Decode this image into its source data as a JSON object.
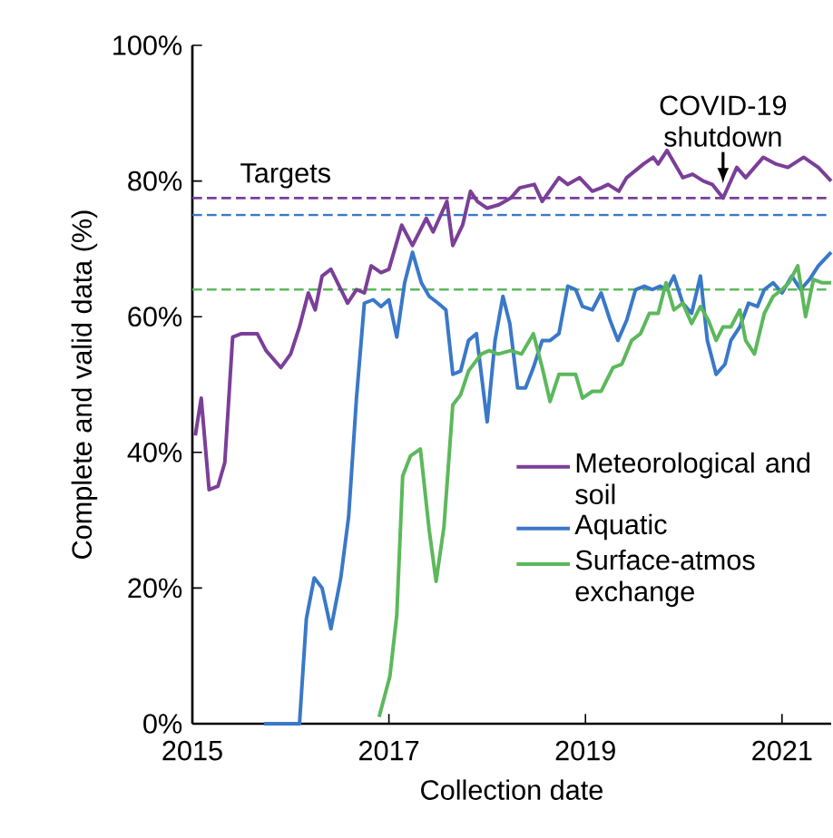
{
  "chart_data": {
    "type": "line",
    "xlabel": "Collection date",
    "ylabel": "Complete and valid data (%)",
    "xlim": [
      2015,
      2021.5
    ],
    "xticks": [
      2015,
      2017,
      2019,
      2021
    ],
    "ylim": [
      0,
      100
    ],
    "yticks": [
      {
        "value": 0,
        "label": "0%"
      },
      {
        "value": 20,
        "label": "20%"
      },
      {
        "value": 40,
        "label": "40%"
      },
      {
        "value": 60,
        "label": "60%"
      },
      {
        "value": 80,
        "label": "80%"
      },
      {
        "value": 100,
        "label": "100%"
      }
    ],
    "legend": "bottom right",
    "series": [
      {
        "name": "Meteorological and soil",
        "color": "#7b3f98",
        "x": [
          2015.03,
          2015.09,
          2015.17,
          2015.26,
          2015.33,
          2015.41,
          2015.5,
          2015.66,
          2015.75,
          2015.9,
          2016.0,
          2016.09,
          2016.18,
          2016.25,
          2016.32,
          2016.41,
          2016.58,
          2016.67,
          2016.75,
          2016.82,
          2016.92,
          2017.0,
          2017.13,
          2017.24,
          2017.38,
          2017.45,
          2017.59,
          2017.65,
          2017.75,
          2017.83,
          2017.9,
          2018.0,
          2018.12,
          2018.24,
          2018.33,
          2018.48,
          2018.56,
          2018.73,
          2018.82,
          2018.94,
          2019.07,
          2019.16,
          2019.23,
          2019.34,
          2019.42,
          2019.59,
          2019.69,
          2019.74,
          2019.83,
          2019.99,
          2020.09,
          2020.2,
          2020.29,
          2020.4,
          2020.54,
          2020.63,
          2020.81,
          2020.94,
          2021.06,
          2021.22,
          2021.37,
          2021.5
        ],
        "values": [
          42.5,
          48,
          34.5,
          35,
          38.5,
          57,
          57.5,
          57.5,
          55,
          52.5,
          54.5,
          58.5,
          63.5,
          61,
          66,
          67,
          62,
          64,
          63.5,
          67.5,
          66.5,
          67,
          73.5,
          70.5,
          74.5,
          72.5,
          77,
          70.5,
          73.5,
          78.5,
          77,
          76,
          76.5,
          77.5,
          79,
          79.5,
          77,
          80.5,
          79.5,
          80.5,
          78.5,
          79,
          79.5,
          78.5,
          80.5,
          82.5,
          83.5,
          82.5,
          84.5,
          80.5,
          81,
          80,
          79.5,
          77.5,
          82,
          80.5,
          83.5,
          82.5,
          82,
          83.5,
          82,
          80
        ]
      },
      {
        "name": "Aquatic",
        "color": "#3a78c8",
        "x": [
          2015.73,
          2016.09,
          2016.16,
          2016.24,
          2016.32,
          2016.41,
          2016.51,
          2016.59,
          2016.67,
          2016.75,
          2016.84,
          2016.92,
          2017.0,
          2017.08,
          2017.16,
          2017.24,
          2017.33,
          2017.41,
          2017.5,
          2017.58,
          2017.65,
          2017.73,
          2017.81,
          2017.89,
          2018.0,
          2018.08,
          2018.16,
          2018.23,
          2018.31,
          2018.39,
          2018.47,
          2018.56,
          2018.64,
          2018.73,
          2018.82,
          2018.9,
          2018.97,
          2019.07,
          2019.16,
          2019.25,
          2019.33,
          2019.42,
          2019.51,
          2019.6,
          2019.68,
          2019.76,
          2019.83,
          2019.9,
          2019.99,
          2020.08,
          2020.17,
          2020.24,
          2020.33,
          2020.42,
          2020.48,
          2020.57,
          2020.66,
          2020.75,
          2020.82,
          2020.91,
          2021.0,
          2021.1,
          2021.19,
          2021.28,
          2021.37,
          2021.5
        ],
        "values": [
          0,
          0,
          15.5,
          21.5,
          20,
          14,
          21.5,
          30.5,
          48,
          62,
          62.5,
          61.5,
          62.5,
          57,
          65,
          69.5,
          65,
          63,
          62,
          61,
          51.5,
          52,
          56.5,
          57.5,
          44.5,
          56.5,
          63,
          59,
          49.5,
          49.5,
          52.5,
          56.5,
          56.5,
          57.5,
          64.5,
          64,
          61.5,
          61,
          63.5,
          59.5,
          56.5,
          59.5,
          64,
          64.5,
          64,
          64.5,
          64,
          66,
          62,
          60.5,
          66,
          56.5,
          51.5,
          53,
          56.5,
          58.5,
          62,
          61.5,
          64,
          65,
          63.5,
          66,
          64,
          65.5,
          67.5,
          69.5
        ]
      },
      {
        "name": "Surface-atmos exchange",
        "color": "#5cb85c",
        "x": [
          2016.9,
          2017.01,
          2017.08,
          2017.14,
          2017.22,
          2017.32,
          2017.41,
          2017.48,
          2017.56,
          2017.65,
          2017.73,
          2017.81,
          2017.94,
          2018.02,
          2018.11,
          2018.24,
          2018.35,
          2018.47,
          2018.56,
          2018.64,
          2018.73,
          2018.9,
          2018.97,
          2019.07,
          2019.16,
          2019.28,
          2019.37,
          2019.47,
          2019.56,
          2019.65,
          2019.74,
          2019.82,
          2019.9,
          2019.99,
          2020.08,
          2020.17,
          2020.25,
          2020.33,
          2020.4,
          2020.48,
          2020.57,
          2020.63,
          2020.72,
          2020.82,
          2020.91,
          2021.0,
          2021.07,
          2021.16,
          2021.24,
          2021.32,
          2021.41,
          2021.5
        ],
        "values": [
          1,
          7,
          16,
          36.5,
          39.5,
          40.5,
          28.5,
          21,
          29,
          47,
          48.5,
          52,
          54.5,
          55,
          54.5,
          55,
          54.5,
          57.5,
          52.5,
          47.5,
          51.5,
          51.5,
          48,
          49,
          49,
          52.5,
          53,
          56.5,
          57.5,
          60.5,
          60.5,
          65,
          61,
          62,
          59,
          61.5,
          59.5,
          56.5,
          58.5,
          58.5,
          61,
          56.5,
          54.5,
          60.5,
          63,
          64,
          65,
          67.5,
          60,
          65.5,
          65,
          65
        ]
      }
    ],
    "ref_lines": [
      {
        "axis": "y",
        "value": 77.5,
        "color": "#7b3f98",
        "line_style": "dashed"
      },
      {
        "axis": "y",
        "value": 75,
        "color": "#3a78c8",
        "line_style": "dashed"
      },
      {
        "axis": "y",
        "value": 64,
        "color": "#5cb85c",
        "line_style": "dashed"
      }
    ],
    "annotations": [
      "Targets",
      {
        "text": "COVID-19 shutdown",
        "x": 2020.4,
        "y": 77.5
      }
    ]
  }
}
